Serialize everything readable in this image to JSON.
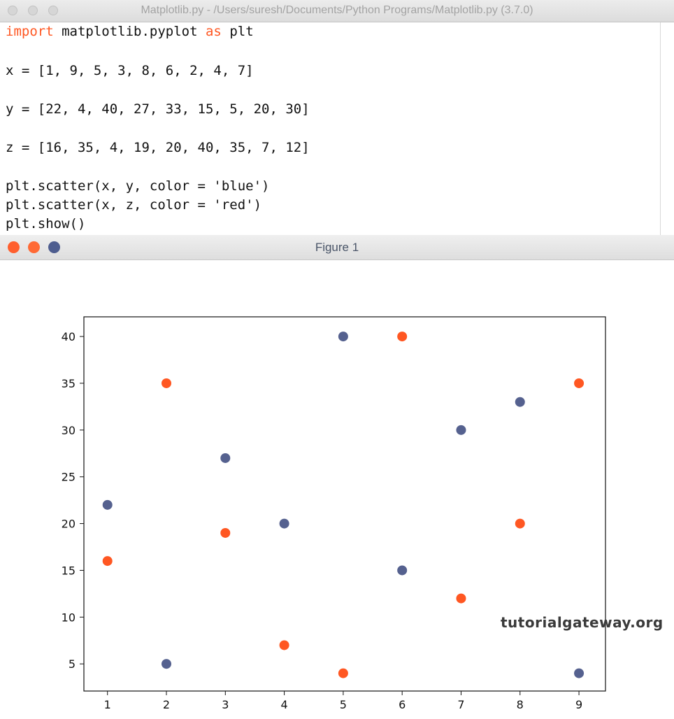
{
  "editor": {
    "title": "Matplotlib.py - /Users/suresh/Documents/Python Programs/Matplotlib.py (3.7.0)",
    "code": {
      "line1_kw1": "import",
      "line1_mid": " matplotlib.pyplot ",
      "line1_kw2": "as",
      "line1_end": " plt",
      "line2": "x = [1, 9, 5, 3, 8, 6, 2, 4, 7]",
      "line3": "y = [22, 4, 40, 27, 33, 15, 5, 20, 30]",
      "line4": "z = [16, 35, 4, 19, 20, 40, 35, 7, 12]",
      "line5": "plt.scatter(x, y, color = 'blue')",
      "line6": "plt.scatter(x, z, color = 'red')",
      "line7": "plt.show()"
    },
    "colors": {
      "keyword": "#ff5722"
    }
  },
  "figure": {
    "title": "Figure 1",
    "traffic_lights": [
      "#ff5f2e",
      "#ff6a35",
      "#4e5d8f"
    ],
    "watermark": "tutorialgateway.org"
  },
  "chart_data": {
    "type": "scatter",
    "xlim": [
      0.6,
      9.45
    ],
    "ylim": [
      2.1,
      42.1
    ],
    "xticks": [
      1,
      2,
      3,
      4,
      5,
      6,
      7,
      8,
      9
    ],
    "yticks": [
      5,
      10,
      15,
      20,
      25,
      30,
      35,
      40
    ],
    "grid": false,
    "series": [
      {
        "color": "#55618f",
        "x": [
          1,
          9,
          5,
          3,
          8,
          6,
          2,
          4,
          7
        ],
        "y": [
          22,
          4,
          40,
          27,
          33,
          15,
          5,
          20,
          30
        ]
      },
      {
        "color": "#ff5722",
        "x": [
          1,
          9,
          5,
          3,
          8,
          6,
          2,
          4,
          7
        ],
        "y": [
          16,
          35,
          4,
          19,
          20,
          40,
          35,
          7,
          12
        ]
      }
    ]
  }
}
